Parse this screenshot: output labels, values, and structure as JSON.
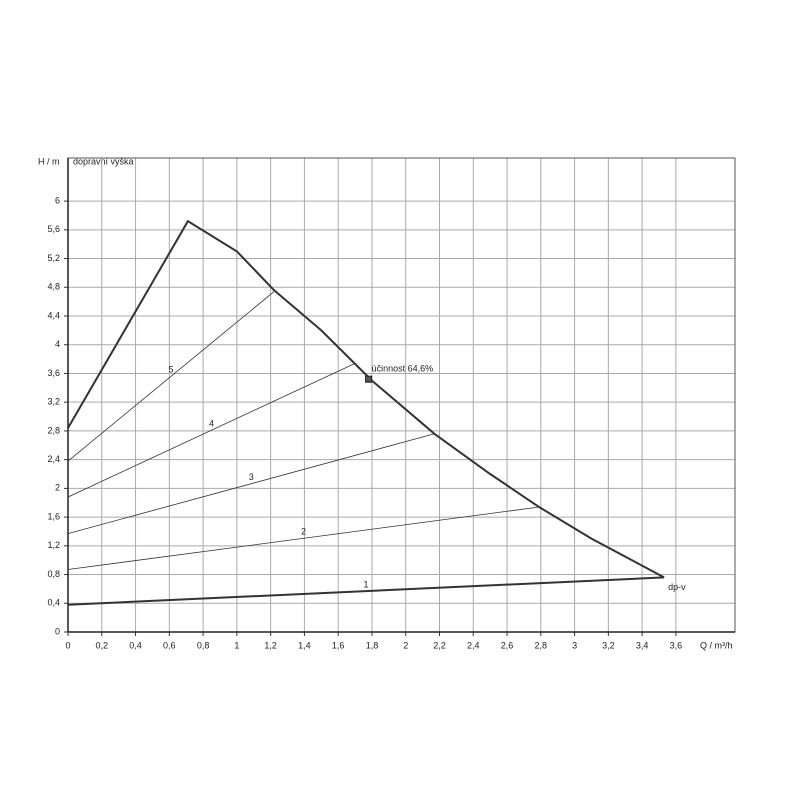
{
  "chart_data": {
    "type": "line",
    "y_label": "H / m",
    "y_subtitle": "dopravní výška",
    "x_label": "Q / m³/h",
    "xlim": [
      0,
      3.95
    ],
    "ylim": [
      0,
      6.6
    ],
    "xticks": [
      0,
      {
        "value": 0.2,
        "label": "0,2"
      },
      {
        "value": 0.4,
        "label": "0,4"
      },
      {
        "value": 0.6,
        "label": "0,6"
      },
      {
        "value": 0.8,
        "label": "0,8"
      },
      1,
      {
        "value": 1.2,
        "label": "1,2"
      },
      {
        "value": 1.4,
        "label": "1,4"
      },
      {
        "value": 1.6,
        "label": "1,6"
      },
      {
        "value": 1.8,
        "label": "1,8"
      },
      2,
      {
        "value": 2.2,
        "label": "2,2"
      },
      {
        "value": 2.4,
        "label": "2,4"
      },
      {
        "value": 2.6,
        "label": "2,6"
      },
      {
        "value": 2.8,
        "label": "2,8"
      },
      3,
      {
        "value": 3.2,
        "label": "3,2"
      },
      {
        "value": 3.4,
        "label": "3,4"
      },
      {
        "value": 3.6,
        "label": "3,6"
      }
    ],
    "yticks": [
      0,
      {
        "value": 0.4,
        "label": "0,4"
      },
      {
        "value": 0.8,
        "label": "0,8"
      },
      {
        "value": 1.2,
        "label": "1,2"
      },
      {
        "value": 1.6,
        "label": "1,6"
      },
      2,
      {
        "value": 2.4,
        "label": "2,4"
      },
      {
        "value": 2.8,
        "label": "2,8"
      },
      {
        "value": 3.2,
        "label": "3,2"
      },
      {
        "value": 3.6,
        "label": "3,6"
      },
      4,
      {
        "value": 4.4,
        "label": "4,4"
      },
      {
        "value": 4.8,
        "label": "4,8"
      },
      {
        "value": 5.2,
        "label": "5,2"
      },
      {
        "value": 5.6,
        "label": "5,6"
      },
      6
    ],
    "grid": true,
    "color": "#333333",
    "series": [
      {
        "x": [
          0,
          0.71,
          1.0,
          1.22,
          1.5,
          1.8,
          2.17,
          2.5,
          2.79,
          3.1,
          3.53
        ],
        "values": [
          2.84,
          5.72,
          5.3,
          4.76,
          4.2,
          3.5,
          2.76,
          2.2,
          1.74,
          1.3,
          0.76
        ]
      },
      {
        "name": "1",
        "x": [
          0,
          3.53
        ],
        "values": [
          0.38,
          0.76
        ]
      },
      {
        "name": "2",
        "x": [
          0,
          2.79
        ],
        "values": [
          0.87,
          1.74
        ]
      },
      {
        "name": "3",
        "x": [
          0,
          2.17
        ],
        "values": [
          1.37,
          2.76
        ]
      },
      {
        "name": "4",
        "x": [
          0,
          1.7
        ],
        "values": [
          1.88,
          3.74
        ]
      },
      {
        "name": "5",
        "x": [
          0,
          1.22
        ],
        "values": [
          2.38,
          4.74
        ]
      }
    ],
    "points": [
      {
        "label": "účinnost  64,6%",
        "x": 1.78,
        "y": 3.52
      }
    ],
    "annotations": [
      {
        "text": "dp-v",
        "x": 3.53,
        "y": 0.76
      }
    ]
  }
}
